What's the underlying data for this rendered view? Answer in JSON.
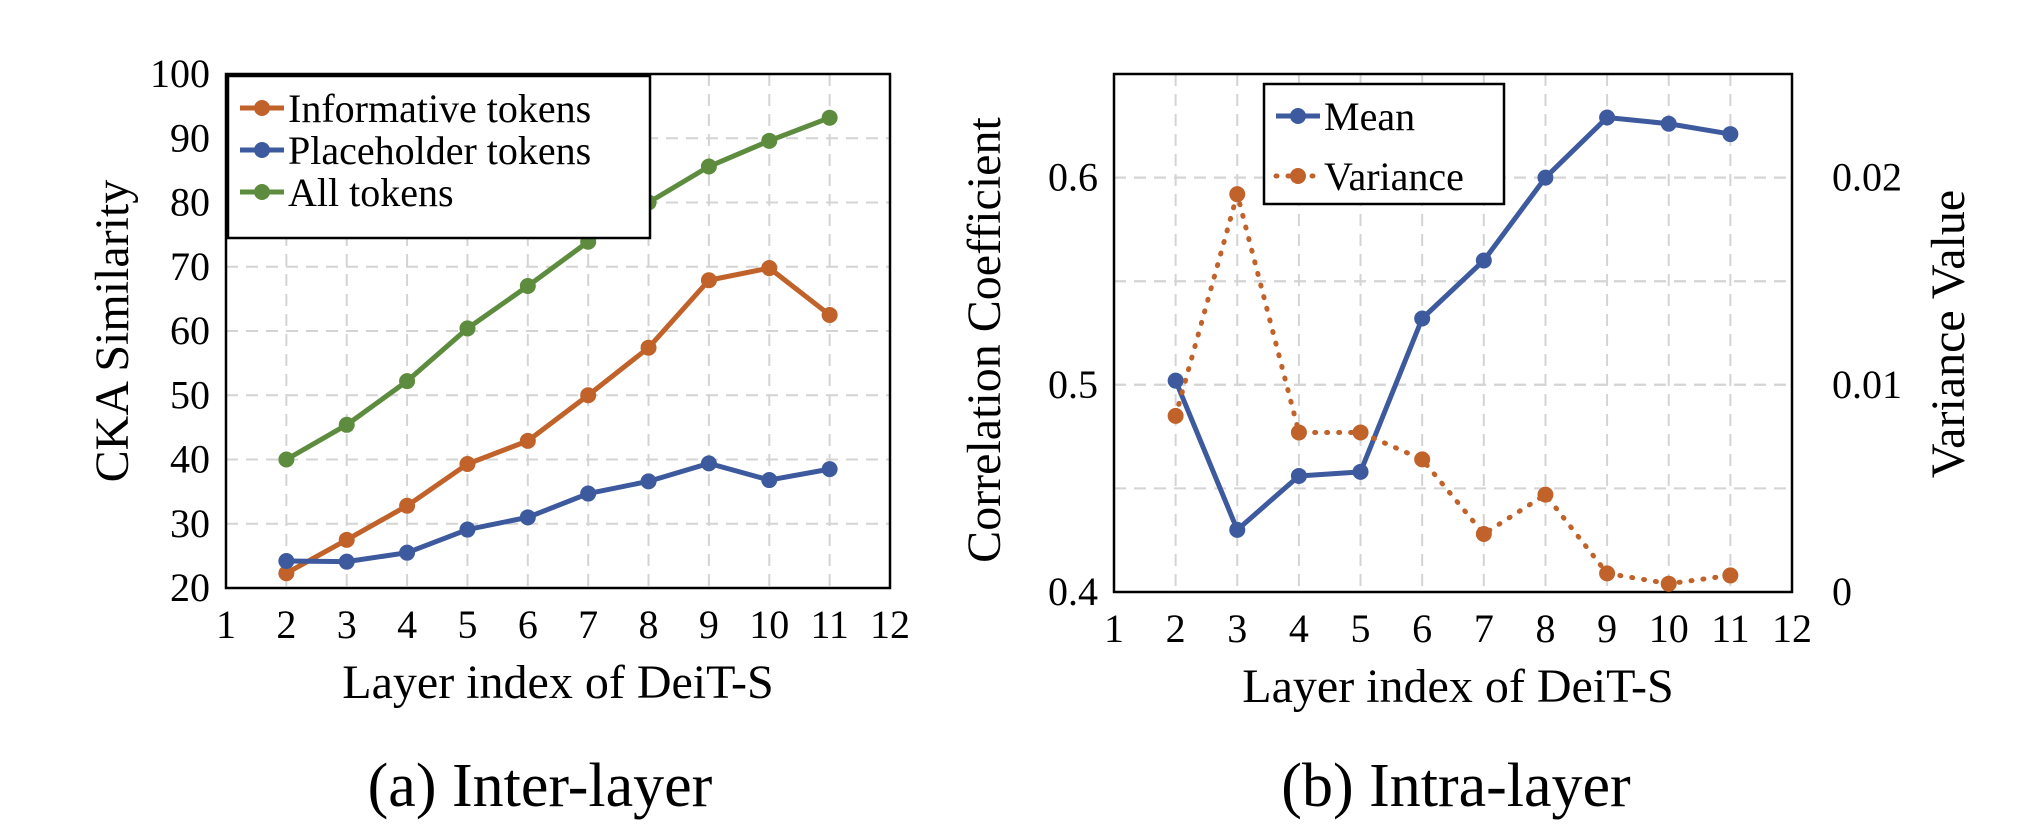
{
  "chart_data": [
    {
      "type": "line",
      "title": "",
      "caption": "(a) Inter-layer",
      "xlabel": "Layer index of DeiT-S",
      "ylabel": "CKA Similarity",
      "xlim": [
        1,
        12
      ],
      "ylim": [
        20,
        100
      ],
      "x_ticks": [
        1,
        2,
        3,
        4,
        5,
        6,
        7,
        8,
        9,
        10,
        11,
        12
      ],
      "y_ticks": [
        20,
        30,
        40,
        50,
        60,
        70,
        80,
        90,
        100
      ],
      "grid": true,
      "legend_position": "top-left",
      "x": [
        2,
        3,
        4,
        5,
        6,
        7,
        8,
        9,
        10,
        11
      ],
      "series": [
        {
          "name": "Informative tokens",
          "color": "#C0622A",
          "style": "solid",
          "values": [
            22.3,
            27.5,
            32.8,
            39.3,
            42.9,
            50.0,
            57.4,
            67.9,
            69.8,
            62.5
          ]
        },
        {
          "name": "Placeholder tokens",
          "color": "#3D5A9E",
          "style": "solid",
          "values": [
            24.2,
            24.1,
            25.5,
            29.1,
            31.0,
            34.7,
            36.6,
            39.4,
            36.8,
            38.5
          ]
        },
        {
          "name": "All tokens",
          "color": "#5E8C3E",
          "style": "solid",
          "values": [
            40.0,
            45.4,
            52.2,
            60.4,
            67.0,
            73.9,
            80.0,
            85.6,
            89.6,
            93.2
          ]
        }
      ]
    },
    {
      "type": "line",
      "title": "",
      "caption": "(b) Intra-layer",
      "xlabel": "Layer index of DeiT-S",
      "ylabel": "Correlation Coefficient",
      "y2label": "Variance Value",
      "xlim": [
        1,
        12
      ],
      "ylim": [
        0.4,
        0.65
      ],
      "y2lim": [
        0,
        0.025
      ],
      "x_ticks": [
        1,
        2,
        3,
        4,
        5,
        6,
        7,
        8,
        9,
        10,
        11,
        12
      ],
      "y_ticks": [
        0.4,
        0.5,
        0.6
      ],
      "y_tick_labels": [
        "0.4",
        "0.5",
        "0.6"
      ],
      "y2_ticks": [
        0,
        0.01,
        0.02
      ],
      "y2_tick_labels": [
        "0",
        "0.01",
        "0.02"
      ],
      "grid": true,
      "legend_position": "top-left",
      "x": [
        2,
        3,
        4,
        5,
        6,
        7,
        8,
        9,
        10,
        11
      ],
      "series": [
        {
          "name": "Mean",
          "axis": "left",
          "color": "#3D5A9E",
          "style": "solid",
          "values": [
            0.502,
            0.43,
            0.456,
            0.458,
            0.532,
            0.56,
            0.6,
            0.629,
            0.626,
            0.621
          ]
        },
        {
          "name": "Variance",
          "axis": "right",
          "color": "#C0622A",
          "style": "dotted",
          "values": [
            0.0085,
            0.0192,
            0.0077,
            0.0077,
            0.0064,
            0.0028,
            0.0047,
            0.0009,
            0.0004,
            0.0008
          ]
        }
      ]
    }
  ]
}
